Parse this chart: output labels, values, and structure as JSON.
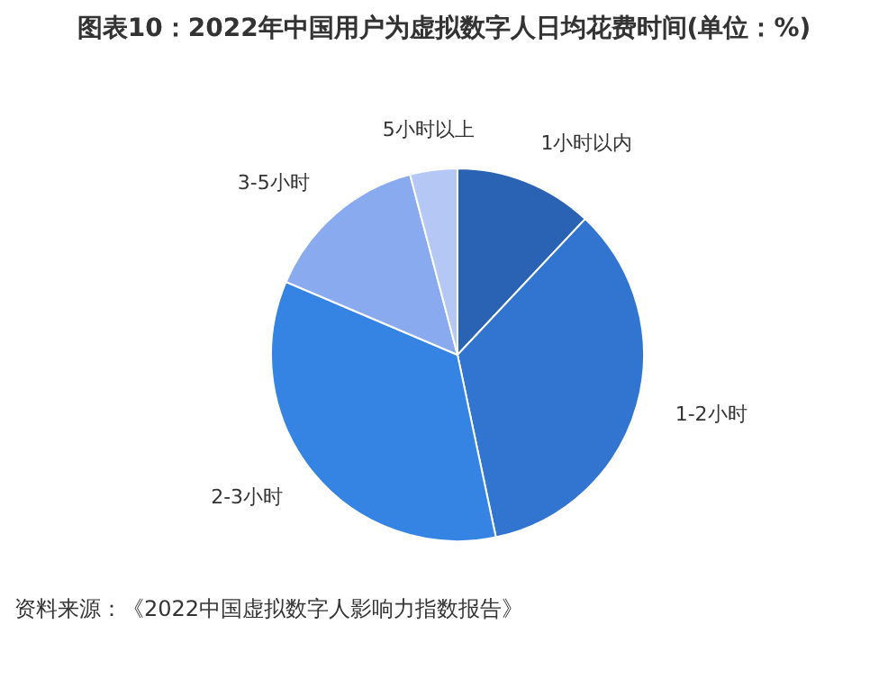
{
  "chart_data": {
    "type": "pie",
    "title": "图表10：2022年中国用户为虚拟数字人日均花费时间(单位：%)",
    "categories": [
      "1小时以内",
      "1-2小时",
      "2-3小时",
      "3-5小时",
      "5小时以上"
    ],
    "values": [
      12,
      34.7,
      34.7,
      14.5,
      4.1
    ],
    "colors": [
      "#2a63b3",
      "#3175d0",
      "#3584e4",
      "#8aaaf0",
      "#b5c8f5"
    ],
    "legend": false,
    "annotations": [
      "资料来源：《2022中国虚拟数字人影响力指数报告》"
    ]
  }
}
